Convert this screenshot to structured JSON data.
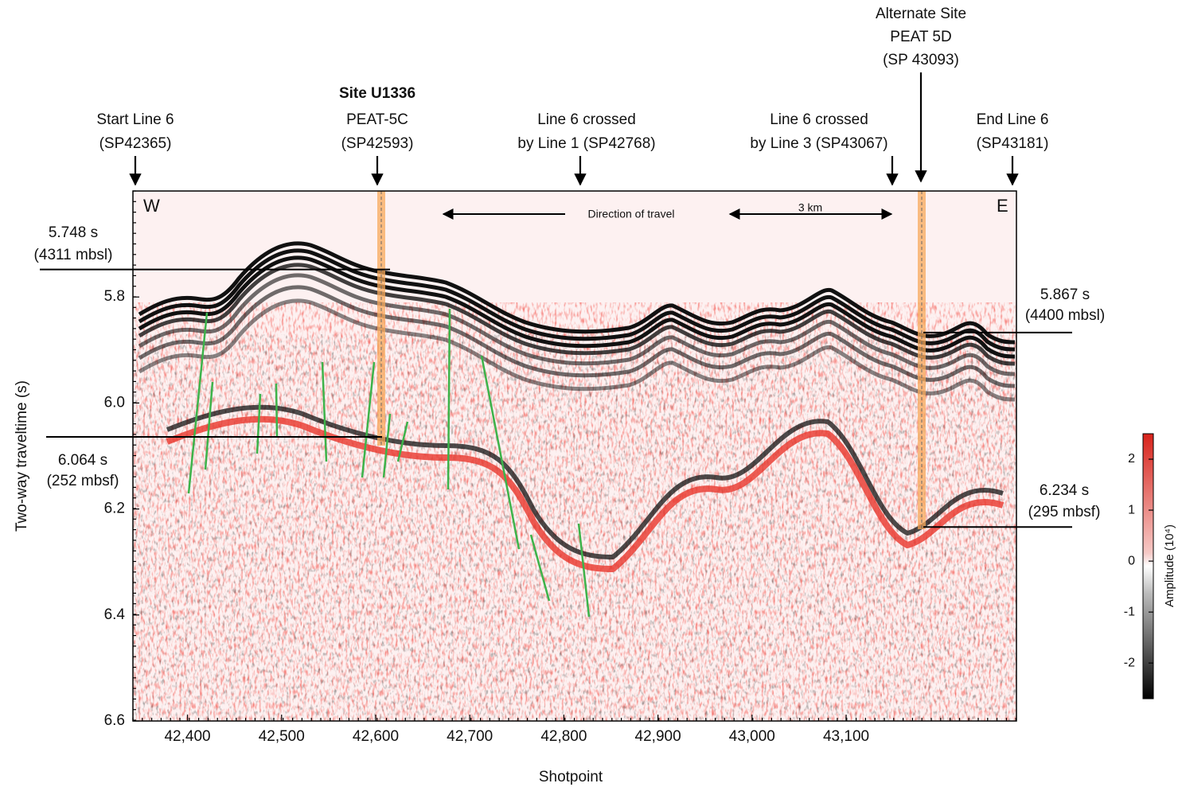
{
  "chart_data": {
    "type": "seismic-section",
    "x_label": "Shotpoint",
    "y_label": "Two-way traveltime (s)",
    "xlim": [
      42342,
      43281
    ],
    "xticks": [
      {
        "value": 42400,
        "label": "42,400"
      },
      {
        "value": 42500,
        "label": "42,500"
      },
      {
        "value": 42600,
        "label": "42,600"
      },
      {
        "value": 42700,
        "label": "42,700"
      },
      {
        "value": 42800,
        "label": "42,800"
      },
      {
        "value": 42900,
        "label": "42,900"
      },
      {
        "value": 43000,
        "label": "43,000"
      },
      {
        "value": 43100,
        "label": "43,100"
      }
    ],
    "ylim": [
      5.6,
      6.6
    ],
    "y_inverted": true,
    "yticks": [
      5.8,
      {
        "value": 6,
        "label": "6.0"
      },
      6.2,
      6.4,
      6.6
    ],
    "top_labels": [
      {
        "lines": [
          "Start Line 6",
          "(SP42365)"
        ]
      },
      {
        "lines": [
          "Site U1336",
          "PEAT-5C",
          "(SP42593)"
        ]
      },
      {
        "lines": [
          "Line 6 crossed",
          "by Line 1 (SP42768)"
        ]
      },
      {
        "lines": [
          "Line 6 crossed",
          "by Line 3 (SP43067)"
        ]
      },
      {
        "lines": [
          "Alternate Site",
          "PEAT 5D",
          "(SP 43093)"
        ]
      },
      {
        "lines": [
          "End Line 6",
          "(SP43181)"
        ]
      }
    ],
    "horizons": [
      {
        "time": 5.748,
        "label": "5.748 s",
        "depth": "(4311 mbsl)"
      },
      {
        "time": 6.064,
        "label": "6.064 s",
        "depth": "(252 mbsf)"
      },
      {
        "time": 5.867,
        "label": "5.867 s",
        "depth": "(4400 mbsl)"
      },
      {
        "time": 6.234,
        "label": "6.234 s",
        "depth": "(295 mbsf)"
      }
    ],
    "inner_labels": {
      "west": "W",
      "east": "E",
      "direction": "Direction of travel",
      "scale": "3 km"
    },
    "colorbar": {
      "label": "Amplitude (10⁴)",
      "clim": [
        -2.7,
        2.5
      ],
      "ticks": [
        2,
        1,
        0,
        -1,
        -2
      ]
    }
  }
}
